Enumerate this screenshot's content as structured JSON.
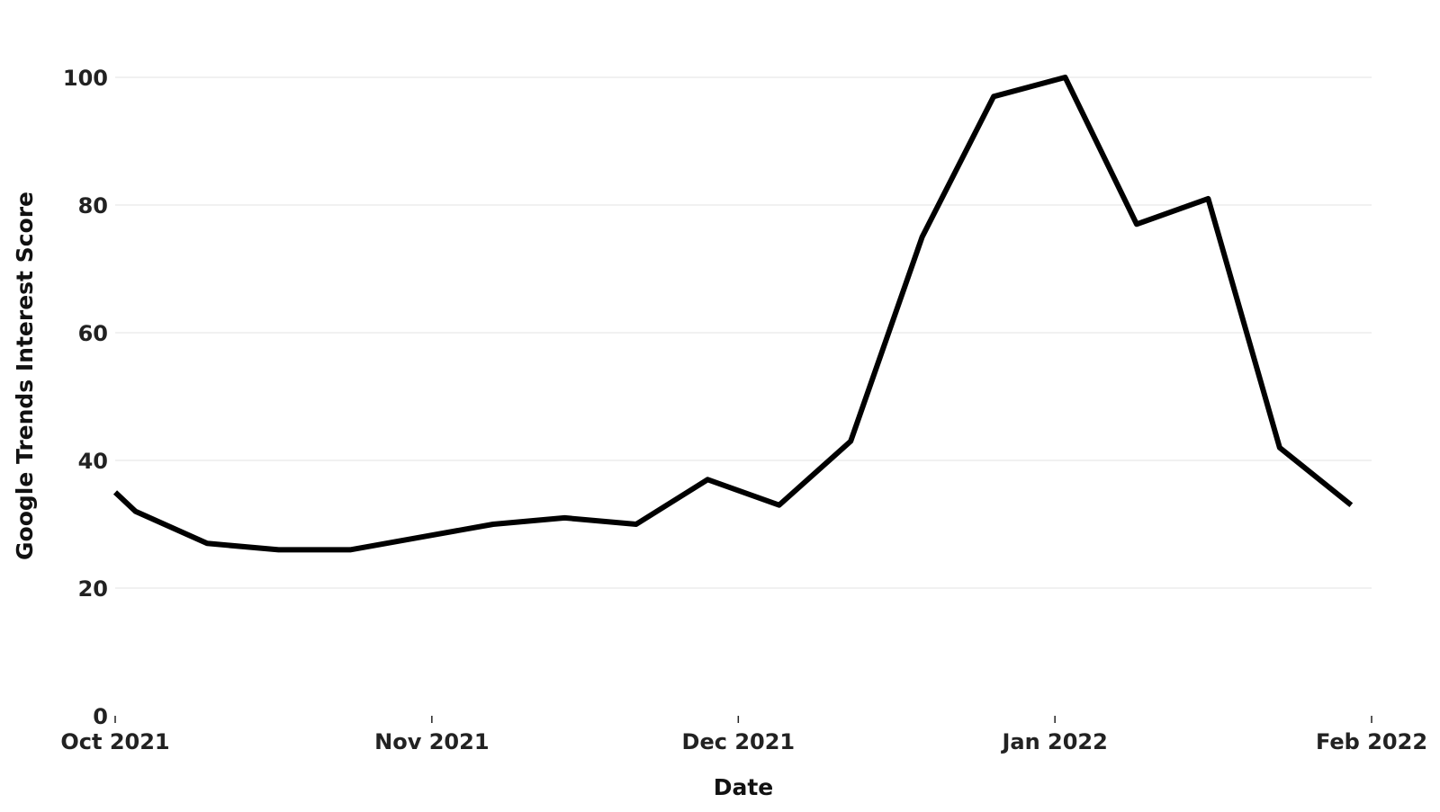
{
  "chart_data": {
    "type": "line",
    "title": "",
    "xlabel": "Date",
    "ylabel": "Google Trends Interest Score",
    "x_ticks": [
      {
        "label": "Oct 2021",
        "date": "2021-10-01"
      },
      {
        "label": "Nov 2021",
        "date": "2021-11-01"
      },
      {
        "label": "Dec 2021",
        "date": "2021-12-01"
      },
      {
        "label": "Jan 2022",
        "date": "2022-01-01"
      },
      {
        "label": "Feb 2022",
        "date": "2022-02-01"
      }
    ],
    "y_ticks": [
      0,
      20,
      40,
      60,
      80,
      100
    ],
    "xlim": [
      "2021-10-01",
      "2022-02-01"
    ],
    "ylim": [
      0,
      100
    ],
    "grid": true,
    "line_color": "#000000",
    "series": [
      {
        "points": [
          {
            "date": "2021-10-01",
            "value": 35
          },
          {
            "date": "2021-10-03",
            "value": 32
          },
          {
            "date": "2021-10-10",
            "value": 27
          },
          {
            "date": "2021-10-17",
            "value": 26
          },
          {
            "date": "2021-10-24",
            "value": 26
          },
          {
            "date": "2021-10-31",
            "value": 28
          },
          {
            "date": "2021-11-07",
            "value": 30
          },
          {
            "date": "2021-11-14",
            "value": 31
          },
          {
            "date": "2021-11-21",
            "value": 30
          },
          {
            "date": "2021-11-28",
            "value": 37
          },
          {
            "date": "2021-12-05",
            "value": 33
          },
          {
            "date": "2021-12-12",
            "value": 43
          },
          {
            "date": "2021-12-19",
            "value": 75
          },
          {
            "date": "2021-12-26",
            "value": 97
          },
          {
            "date": "2022-01-02",
            "value": 100
          },
          {
            "date": "2022-01-09",
            "value": 77
          },
          {
            "date": "2022-01-16",
            "value": 81
          },
          {
            "date": "2022-01-23",
            "value": 42
          },
          {
            "date": "2022-01-30",
            "value": 33
          }
        ]
      }
    ]
  }
}
